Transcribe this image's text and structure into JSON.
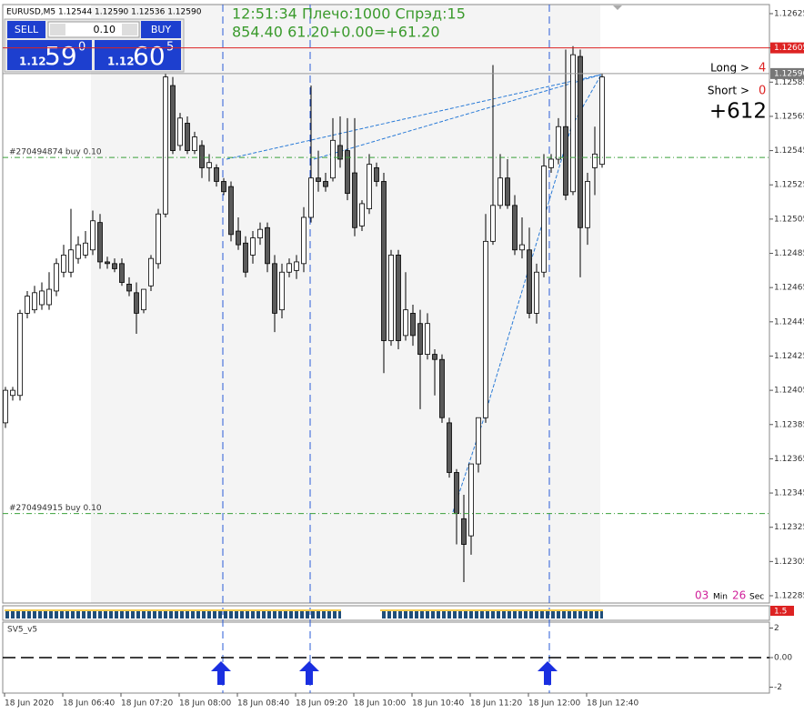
{
  "header": {
    "symbol_line": "EURUSD,M5  1.12544 1.12590 1.12536 1.12590",
    "info_line1": "12:51:34 Плечо:1000 Спрэд:15",
    "info_line2": "854.40    61.20+0.00=+61.20"
  },
  "trade_panel": {
    "sell": "SELL",
    "buy": "BUY",
    "lot": "0.10",
    "bid": {
      "big": "1.12",
      "pips": "59",
      "frac": "0"
    },
    "ask": {
      "big": "1.12",
      "pips": "60",
      "frac": "5"
    }
  },
  "stats": {
    "long_label": "Long >",
    "long_value": "4",
    "short_label": "Short >",
    "short_value": "0",
    "profit": "+612"
  },
  "timer": {
    "min": "03",
    "min_label": "Min",
    "sec": "26",
    "sec_label": "Sec"
  },
  "price_chart": {
    "ylim": [
      1.12285,
      1.12625
    ],
    "yticks": [
      1.12625,
      1.12605,
      1.12585,
      1.12565,
      1.12545,
      1.12525,
      1.12505,
      1.12485,
      1.12465,
      1.12445,
      1.12425,
      1.12405,
      1.12385,
      1.12365,
      1.12345,
      1.12325,
      1.12305,
      1.12285
    ],
    "price_line": {
      "value": 1.12605,
      "label": "1.12605"
    },
    "bid_line": {
      "value": 1.1259,
      "label": "1.12590"
    },
    "orders": [
      {
        "label": "#270494874 buy 0.10",
        "price": 1.12541
      },
      {
        "label": "#270494915 buy 0.10",
        "price": 1.12333
      }
    ],
    "candles": [
      [
        1.12386,
        1.12407,
        1.12383,
        1.12405
      ],
      [
        1.12402,
        1.12407,
        1.12399,
        1.12405
      ],
      [
        1.12402,
        1.12452,
        1.12399,
        1.1245
      ],
      [
        1.1245,
        1.12463,
        1.12447,
        1.1246
      ],
      [
        1.12452,
        1.12466,
        1.1245,
        1.12462
      ],
      [
        1.12455,
        1.12468,
        1.12452,
        1.12463
      ],
      [
        1.12455,
        1.12474,
        1.12452,
        1.12464
      ],
      [
        1.12463,
        1.12482,
        1.1246,
        1.12479
      ],
      [
        1.12474,
        1.1249,
        1.12471,
        1.12484
      ],
      [
        1.12474,
        1.12511,
        1.12471,
        1.12487
      ],
      [
        1.12482,
        1.12495,
        1.12479,
        1.1249
      ],
      [
        1.12484,
        1.12498,
        1.12482,
        1.12491
      ],
      [
        1.12487,
        1.1251,
        1.12484,
        1.12504
      ],
      [
        1.12503,
        1.12508,
        1.12476,
        1.1248
      ],
      [
        1.1248,
        1.12483,
        1.12476,
        1.12479
      ],
      [
        1.12479,
        1.12482,
        1.12474,
        1.12476
      ],
      [
        1.12479,
        1.12482,
        1.12466,
        1.12468
      ],
      [
        1.12467,
        1.12471,
        1.1246,
        1.12463
      ],
      [
        1.12462,
        1.12468,
        1.12438,
        1.1245
      ],
      [
        1.12452,
        1.12464,
        1.1245,
        1.12464
      ],
      [
        1.12466,
        1.12484,
        1.12463,
        1.12482
      ],
      [
        1.12479,
        1.12511,
        1.12476,
        1.12508
      ],
      [
        1.12508,
        1.1259,
        1.12506,
        1.12588
      ],
      [
        1.12583,
        1.12588,
        1.12543,
        1.12545
      ],
      [
        1.12548,
        1.12567,
        1.12545,
        1.12564
      ],
      [
        1.12561,
        1.12565,
        1.12543,
        1.12545
      ],
      [
        1.12545,
        1.12556,
        1.12543,
        1.12553
      ],
      [
        1.12548,
        1.12551,
        1.12529,
        1.12535
      ],
      [
        1.12535,
        1.12543,
        1.12527,
        1.12538
      ],
      [
        1.12535,
        1.12537,
        1.12524,
        1.12527
      ],
      [
        1.12527,
        1.12529,
        1.12519,
        1.12521
      ],
      [
        1.12524,
        1.12527,
        1.12492,
        1.12496
      ],
      [
        1.12498,
        1.12506,
        1.12487,
        1.1249
      ],
      [
        1.12491,
        1.12495,
        1.12471,
        1.12474
      ],
      [
        1.12484,
        1.12498,
        1.12479,
        1.12494
      ],
      [
        1.12494,
        1.12503,
        1.1249,
        1.12499
      ],
      [
        1.125,
        1.12503,
        1.12474,
        1.12479
      ],
      [
        1.12479,
        1.12484,
        1.12439,
        1.1245
      ],
      [
        1.12452,
        1.12479,
        1.12447,
        1.12474
      ],
      [
        1.12474,
        1.12482,
        1.12471,
        1.12479
      ],
      [
        1.12475,
        1.12484,
        1.1247,
        1.1248
      ],
      [
        1.12479,
        1.12512,
        1.12474,
        1.12506
      ],
      [
        1.12506,
        1.12583,
        1.12503,
        1.12529
      ],
      [
        1.12529,
        1.12545,
        1.12521,
        1.12527
      ],
      [
        1.12527,
        1.12532,
        1.12521,
        1.12524
      ],
      [
        1.12529,
        1.12564,
        1.12527,
        1.12551
      ],
      [
        1.12548,
        1.12565,
        1.12535,
        1.1254
      ],
      [
        1.12545,
        1.12564,
        1.12516,
        1.1252
      ],
      [
        1.12532,
        1.12564,
        1.12495,
        1.125
      ],
      [
        1.12501,
        1.12516,
        1.12498,
        1.12514
      ],
      [
        1.12511,
        1.12543,
        1.12508,
        1.12537
      ],
      [
        1.12535,
        1.12538,
        1.12524,
        1.12527
      ],
      [
        1.12527,
        1.12532,
        1.12415,
        1.12434
      ],
      [
        1.12434,
        1.12487,
        1.12431,
        1.12484
      ],
      [
        1.12484,
        1.12487,
        1.12429,
        1.12434
      ],
      [
        1.12437,
        1.12474,
        1.12434,
        1.12452
      ],
      [
        1.1245,
        1.12455,
        1.12431,
        1.12437
      ],
      [
        1.12444,
        1.12452,
        1.12394,
        1.12426
      ],
      [
        1.12426,
        1.1245,
        1.12423,
        1.12444
      ],
      [
        1.12426,
        1.12429,
        1.12402,
        1.12423
      ],
      [
        1.12423,
        1.12426,
        1.12386,
        1.12389
      ],
      [
        1.12386,
        1.12389,
        1.12354,
        1.12357
      ],
      [
        1.12357,
        1.12359,
        1.12315,
        1.12333
      ],
      [
        1.1233,
        1.12344,
        1.12293,
        1.12315
      ],
      [
        1.1232,
        1.12362,
        1.12309,
        1.12362
      ],
      [
        1.12362,
        1.12389,
        1.12357,
        1.12389
      ],
      [
        1.12389,
        1.12508,
        1.12386,
        1.12492
      ],
      [
        1.12492,
        1.12595,
        1.1249,
        1.12513
      ],
      [
        1.12513,
        1.12543,
        1.12511,
        1.12529
      ],
      [
        1.12529,
        1.1254,
        1.12511,
        1.12513
      ],
      [
        1.12513,
        1.12519,
        1.12484,
        1.12487
      ],
      [
        1.12487,
        1.12506,
        1.12482,
        1.1249
      ],
      [
        1.12487,
        1.125,
        1.12447,
        1.1245
      ],
      [
        1.1245,
        1.12479,
        1.12444,
        1.12474
      ],
      [
        1.12474,
        1.12543,
        1.12471,
        1.12536
      ],
      [
        1.12535,
        1.12543,
        1.12532,
        1.1254
      ],
      [
        1.1254,
        1.12564,
        1.12537,
        1.12559
      ],
      [
        1.12559,
        1.12604,
        1.12516,
        1.12519
      ],
      [
        1.12521,
        1.12606,
        1.12519,
        1.12601
      ],
      [
        1.126,
        1.12604,
        1.12471,
        1.125
      ],
      [
        1.125,
        1.12532,
        1.1249,
        1.12527
      ],
      [
        1.12535,
        1.12559,
        1.12519,
        1.12543
      ],
      [
        1.12537,
        1.1259,
        1.12535,
        1.12588
      ]
    ]
  },
  "indicator": {
    "label": "1.5"
  },
  "subpanel": {
    "title": "SV5_v5",
    "ylim": [
      -2.4,
      2.4
    ],
    "yticks": [
      2,
      {
        "value": 0,
        "label": "0.00"
      },
      -2
    ]
  },
  "time_axis": [
    "18 Jun 2020",
    "18 Jun 06:40",
    "18 Jun 07:20",
    "18 Jun 08:00",
    "18 Jun 08:40",
    "18 Jun 09:20",
    "18 Jun 10:00",
    "18 Jun 10:40",
    "18 Jun 11:20",
    "18 Jun 12:00",
    "18 Jun 12:40"
  ]
}
